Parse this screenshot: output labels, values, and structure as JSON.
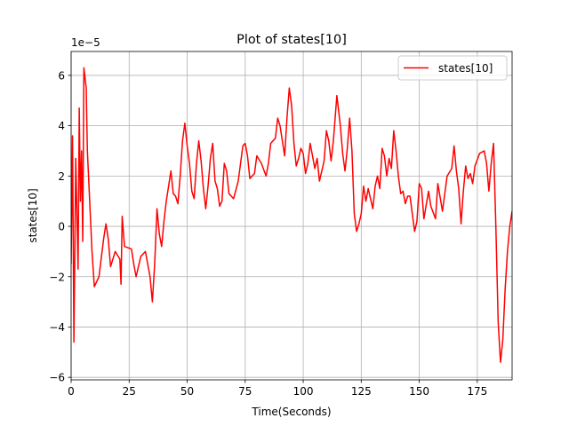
{
  "chart_data": {
    "type": "line",
    "title": "Plot of states[10]",
    "xlabel": "Time(Seconds)",
    "ylabel": "states[10]",
    "offset_text": "1e−5",
    "xlim": [
      0,
      190
    ],
    "ylim": [
      -6.1,
      6.95
    ],
    "xticks": [
      0,
      25,
      50,
      75,
      100,
      125,
      150,
      175
    ],
    "yticks": [
      {
        "value": -6,
        "label": "−6"
      },
      {
        "value": -4,
        "label": "−4"
      },
      {
        "value": -2,
        "label": "−2"
      },
      0,
      2,
      4,
      6
    ],
    "grid": true,
    "legend": "upper right",
    "x": [
      0,
      0.6,
      1.2,
      2,
      3,
      3.5,
      4,
      4.5,
      5,
      5.5,
      6.5,
      7,
      8,
      9,
      10,
      12,
      14,
      15,
      16,
      17,
      19,
      21,
      21.5,
      22,
      23,
      26,
      27,
      28,
      30,
      32,
      34,
      35,
      36,
      37,
      38,
      39,
      40,
      41,
      43,
      44,
      45,
      46,
      47,
      48,
      49,
      50,
      51,
      52,
      53,
      54,
      55,
      56,
      57,
      58,
      59,
      60,
      61,
      62,
      63,
      64,
      65,
      66,
      67,
      68,
      69,
      70,
      72,
      74,
      75,
      76,
      77,
      79,
      80,
      82,
      84,
      85,
      86,
      88,
      89,
      90,
      91,
      92,
      93,
      94,
      95,
      96,
      97,
      98,
      99,
      100,
      101,
      102,
      103,
      104,
      105,
      106,
      107,
      109,
      110,
      111,
      112,
      113,
      114.5,
      116,
      117,
      118,
      119,
      120,
      121,
      122,
      123,
      124,
      125,
      126,
      127,
      128,
      130,
      131,
      132,
      133,
      134,
      135,
      136,
      137,
      138,
      139,
      140,
      141,
      142,
      143,
      144,
      145,
      146,
      148,
      149,
      150,
      151,
      152,
      154,
      155,
      157,
      158,
      160,
      162,
      164,
      165,
      166,
      167,
      168,
      169,
      170,
      171,
      172,
      173,
      174,
      176,
      178,
      179,
      180,
      181,
      182,
      183,
      184,
      185,
      186,
      187,
      188,
      189,
      190
    ],
    "series": [
      {
        "name": "states[10]",
        "color": "#ff0000",
        "values": [
          -1.5,
          3.6,
          -4.6,
          2.7,
          -1.7,
          4.7,
          1,
          3,
          -0.6,
          6.3,
          5.5,
          3,
          1,
          -1,
          -2.4,
          -2,
          -0.5,
          0.1,
          -0.5,
          -1.6,
          -1,
          -1.3,
          -2.3,
          0.4,
          -0.8,
          -0.9,
          -1.5,
          -2,
          -1.2,
          -1,
          -2,
          -3,
          -1.5,
          0.7,
          -0.3,
          -0.8,
          0.2,
          1,
          2.2,
          1.3,
          1.2,
          0.9,
          2,
          3.4,
          4.1,
          3.2,
          2.5,
          1.4,
          1.1,
          2.5,
          3.4,
          2.6,
          1.5,
          0.7,
          1.6,
          2.7,
          3.3,
          1.8,
          1.5,
          0.8,
          1,
          2.5,
          2.2,
          1.3,
          1.2,
          1.1,
          1.8,
          3.2,
          3.3,
          2.8,
          1.9,
          2.1,
          2.8,
          2.5,
          2,
          2.5,
          3.3,
          3.5,
          4.3,
          4,
          3.4,
          2.8,
          4.3,
          5.5,
          4.8,
          3.3,
          2.4,
          2.7,
          3.1,
          2.9,
          2.1,
          2.5,
          3.3,
          2.8,
          2.3,
          2.7,
          1.8,
          2.6,
          3.8,
          3.4,
          2.6,
          3.4,
          5.2,
          4,
          2.9,
          2.2,
          3.1,
          4.3,
          3,
          0.5,
          -0.2,
          0.1,
          0.5,
          1.6,
          1,
          1.5,
          0.7,
          1.6,
          2,
          1.5,
          3.1,
          2.8,
          2,
          2.7,
          2.3,
          3.8,
          3,
          2,
          1.3,
          1.4,
          0.9,
          1.2,
          1.2,
          -0.2,
          0.2,
          1.7,
          1.5,
          0.3,
          1.4,
          0.8,
          0.3,
          1.7,
          0.6,
          2,
          2.3,
          3.2,
          2.2,
          1.5,
          0.1,
          1.4,
          2.4,
          1.9,
          2.1,
          1.7,
          2.4,
          2.9,
          3,
          2.5,
          1.4,
          2.5,
          3.3,
          0,
          -3.8,
          -5.4,
          -4.5,
          -2.5,
          -1,
          0,
          0.6
        ]
      }
    ]
  }
}
